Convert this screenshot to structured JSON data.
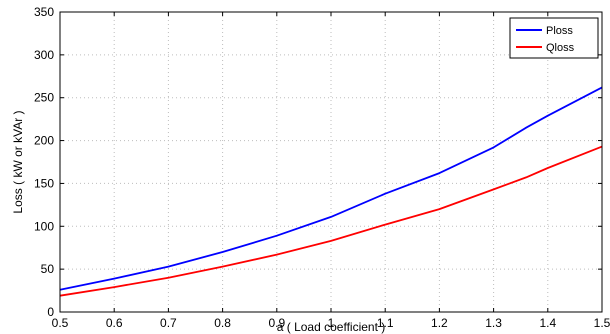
{
  "chart_data": {
    "type": "line",
    "xlabel": "a ( Load coefficient )",
    "ylabel": "Loss ( kW or kVAr )",
    "xlim": [
      0.5,
      1.5
    ],
    "ylim": [
      0,
      350
    ],
    "xticks": [
      "0.5",
      "0.6",
      "0.7",
      "0.8",
      "0.9",
      "1",
      "1.1",
      "1.2",
      "1.3",
      "1.4",
      "1.5"
    ],
    "yticks": [
      "0",
      "50",
      "100",
      "150",
      "200",
      "250",
      "300",
      "350"
    ],
    "grid": true,
    "legend_position": "top-right",
    "x": [
      0.5,
      0.6,
      0.7,
      0.8,
      0.9,
      1.0,
      1.1,
      1.2,
      1.3,
      1.36,
      1.4,
      1.5
    ],
    "series": [
      {
        "name": "Ploss",
        "color": "#0000ff",
        "values": [
          26,
          39,
          53,
          70,
          89,
          111,
          138,
          162,
          192,
          215,
          229,
          262
        ]
      },
      {
        "name": "Qloss",
        "color": "#ff0000",
        "values": [
          19,
          29,
          40,
          53,
          67,
          83,
          102,
          120,
          143,
          157,
          168,
          193
        ]
      }
    ]
  }
}
